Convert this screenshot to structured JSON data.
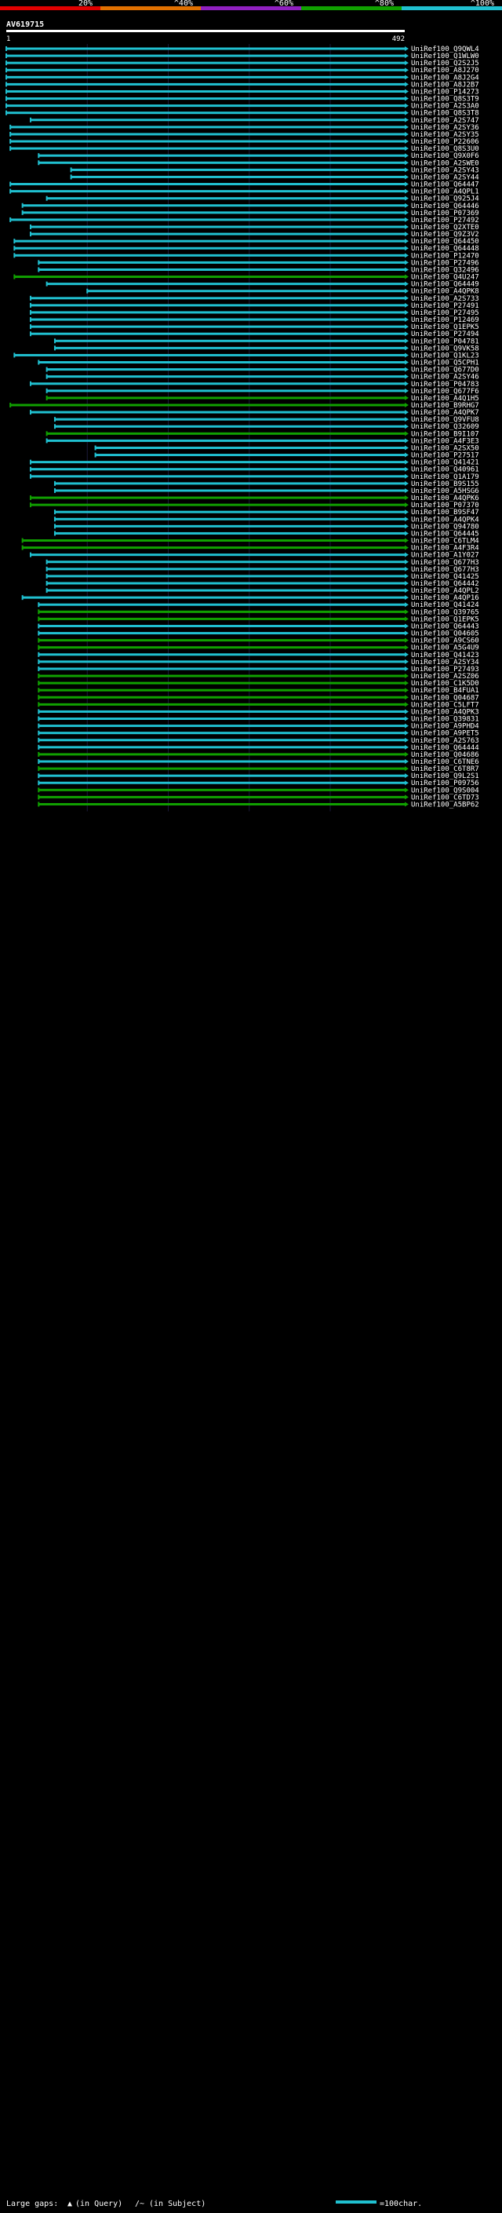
{
  "chart_data": {
    "type": "alignment-coverage",
    "title": "AV619715",
    "query_start_label": "1",
    "query_end_label": "492",
    "query_length": 492,
    "identity_scale": [
      {
        "label": "20%",
        "color": "#e00000"
      },
      {
        "label": "^40%",
        "color": "#e07000"
      },
      {
        "label": "^60%",
        "color": "#9020c0"
      },
      {
        "label": "^80%",
        "color": "#10a000"
      },
      {
        "label": "^100%",
        "color": "#20c0d0"
      }
    ],
    "colors": {
      "cyan": "#20c0d0",
      "green": "#10a000",
      "gap": "#ffffff",
      "background": "#000000"
    },
    "legend": {
      "gaps_prefix": "Large gaps:",
      "gaps_query": "(in Query)",
      "gaps_subject": "(in Subject)",
      "scale_label": "=100char."
    },
    "hits": [
      {
        "id": "UniRef100_Q9QWL4",
        "qs": 0,
        "qe": 492,
        "c": "c"
      },
      {
        "id": "UniRef100_Q1WLW0",
        "qs": 0,
        "qe": 492,
        "c": "c"
      },
      {
        "id": "UniRef100_Q2S2J5",
        "qs": 0,
        "qe": 492,
        "c": "c"
      },
      {
        "id": "UniRef100_A8J270",
        "qs": 0,
        "qe": 492,
        "c": "c"
      },
      {
        "id": "UniRef100_A8J2G4",
        "qs": 0,
        "qe": 492,
        "c": "c"
      },
      {
        "id": "UniRef100_A8J2B7",
        "qs": 0,
        "qe": 492,
        "c": "c"
      },
      {
        "id": "UniRef100_P14273",
        "qs": 0,
        "qe": 492,
        "c": "c"
      },
      {
        "id": "UniRef100_Q8S3T9",
        "qs": 0,
        "qe": 492,
        "c": "c"
      },
      {
        "id": "UniRef100_A2S3A0",
        "qs": 0,
        "qe": 492,
        "c": "c"
      },
      {
        "id": "UniRef100_Q8S3T8",
        "qs": 0,
        "qe": 492,
        "c": "c"
      },
      {
        "id": "UniRef100_A2S747",
        "qs": 30,
        "qe": 492,
        "c": "c"
      },
      {
        "id": "UniRef100_A2SY36",
        "qs": 5,
        "qe": 492,
        "c": "c"
      },
      {
        "id": "UniRef100_A2SY35",
        "qs": 5,
        "qe": 492,
        "c": "c"
      },
      {
        "id": "UniRef100_P22606",
        "qs": 5,
        "qe": 492,
        "c": "c"
      },
      {
        "id": "UniRef100_Q8S3U0",
        "qs": 5,
        "qe": 492,
        "c": "c"
      },
      {
        "id": "UniRef100_Q9X0F6",
        "qs": 40,
        "qe": 492,
        "c": "c"
      },
      {
        "id": "UniRef100_A2SWE0",
        "qs": 40,
        "qe": 492,
        "c": "c"
      },
      {
        "id": "UniRef100_A2SY43",
        "qs": 80,
        "qe": 492,
        "c": "c"
      },
      {
        "id": "UniRef100_A2SY44",
        "qs": 80,
        "qe": 492,
        "c": "c"
      },
      {
        "id": "UniRef100_Q64447",
        "qs": 5,
        "qe": 492,
        "c": "c"
      },
      {
        "id": "UniRef100_A4QPL1",
        "qs": 5,
        "qe": 492,
        "c": "c"
      },
      {
        "id": "UniRef100_Q925J4",
        "qs": 50,
        "qe": 492,
        "c": "c"
      },
      {
        "id": "UniRef100_Q64446",
        "qs": 20,
        "qe": 492,
        "c": "c"
      },
      {
        "id": "UniRef100_P07369",
        "qs": 20,
        "qe": 492,
        "c": "c"
      },
      {
        "id": "UniRef100_P27492",
        "qs": 5,
        "qe": 492,
        "c": "c"
      },
      {
        "id": "UniRef100_Q2XTE0",
        "qs": 30,
        "qe": 492,
        "c": "c"
      },
      {
        "id": "UniRef100_Q9Z3V2",
        "qs": 30,
        "qe": 492,
        "c": "c"
      },
      {
        "id": "UniRef100_Q64450",
        "qs": 10,
        "qe": 492,
        "c": "c"
      },
      {
        "id": "UniRef100_Q64448",
        "qs": 10,
        "qe": 492,
        "c": "c"
      },
      {
        "id": "UniRef100_P12470",
        "qs": 10,
        "qe": 492,
        "c": "c"
      },
      {
        "id": "UniRef100_P27496",
        "qs": 40,
        "qe": 492,
        "c": "c"
      },
      {
        "id": "UniRef100_Q32496",
        "qs": 40,
        "qe": 492,
        "c": "c"
      },
      {
        "id": "UniRef100_Q4U247",
        "qs": 10,
        "qe": 492,
        "c": "g"
      },
      {
        "id": "UniRef100_Q64449",
        "qs": 50,
        "qe": 492,
        "c": "c"
      },
      {
        "id": "UniRef100_A4QPK8",
        "qs": 100,
        "qe": 492,
        "c": "c"
      },
      {
        "id": "UniRef100_A2S733",
        "qs": 30,
        "qe": 492,
        "c": "c"
      },
      {
        "id": "UniRef100_P27491",
        "qs": 30,
        "qe": 492,
        "c": "c"
      },
      {
        "id": "UniRef100_P27495",
        "qs": 30,
        "qe": 492,
        "c": "c"
      },
      {
        "id": "UniRef100_P12469",
        "qs": 30,
        "qe": 492,
        "c": "c"
      },
      {
        "id": "UniRef100_Q1EPK5",
        "qs": 30,
        "qe": 492,
        "c": "c"
      },
      {
        "id": "UniRef100_P27494",
        "qs": 30,
        "qe": 492,
        "c": "c"
      },
      {
        "id": "UniRef100_P04781",
        "qs": 60,
        "qe": 492,
        "c": "c"
      },
      {
        "id": "UniRef100_Q9VK58",
        "qs": 60,
        "qe": 492,
        "c": "c"
      },
      {
        "id": "UniRef100_Q1KL23",
        "qs": 10,
        "qe": 492,
        "c": "c"
      },
      {
        "id": "UniRef100_Q5CPH1",
        "qs": 40,
        "qe": 492,
        "c": "c"
      },
      {
        "id": "UniRef100_Q677D0",
        "qs": 50,
        "qe": 492,
        "c": "c"
      },
      {
        "id": "UniRef100_A2SY46",
        "qs": 50,
        "qe": 492,
        "c": "c"
      },
      {
        "id": "UniRef100_P04783",
        "qs": 30,
        "qe": 492,
        "c": "c"
      },
      {
        "id": "UniRef100_Q677F6",
        "qs": 50,
        "qe": 492,
        "c": "c"
      },
      {
        "id": "UniRef100_A4Q1H5",
        "qs": 50,
        "qe": 492,
        "c": "g"
      },
      {
        "id": "UniRef100_B9RHG7",
        "qs": 5,
        "qe": 492,
        "c": "g"
      },
      {
        "id": "UniRef100_A4QPK7",
        "qs": 30,
        "qe": 492,
        "c": "c"
      },
      {
        "id": "UniRef100_Q9VFU8",
        "qs": 60,
        "qe": 492,
        "c": "c"
      },
      {
        "id": "UniRef100_Q32609",
        "qs": 60,
        "qe": 492,
        "c": "c"
      },
      {
        "id": "UniRef100_B9I107",
        "qs": 50,
        "qe": 492,
        "c": "g"
      },
      {
        "id": "UniRef100_A4F3E3",
        "qs": 50,
        "qe": 492,
        "c": "c"
      },
      {
        "id": "UniRef100_A2SX50",
        "qs": 110,
        "qe": 492,
        "c": "c"
      },
      {
        "id": "UniRef100_P27517",
        "qs": 110,
        "qe": 492,
        "c": "c"
      },
      {
        "id": "UniRef100_Q41421",
        "qs": 30,
        "qe": 492,
        "c": "c"
      },
      {
        "id": "UniRef100_Q40961",
        "qs": 30,
        "qe": 492,
        "c": "c"
      },
      {
        "id": "UniRef100_Q1A179",
        "qs": 30,
        "qe": 492,
        "c": "c"
      },
      {
        "id": "UniRef100_B9S155",
        "qs": 60,
        "qe": 492,
        "c": "c"
      },
      {
        "id": "UniRef100_A5HSG6",
        "qs": 60,
        "qe": 492,
        "c": "c"
      },
      {
        "id": "UniRef100_A4QPK6",
        "qs": 30,
        "qe": 492,
        "c": "g"
      },
      {
        "id": "UniRef100_P07370",
        "qs": 30,
        "qe": 492,
        "c": "g"
      },
      {
        "id": "UniRef100_B9SF47",
        "qs": 60,
        "qe": 492,
        "c": "c"
      },
      {
        "id": "UniRef100_A4QPK4",
        "qs": 60,
        "qe": 492,
        "c": "c"
      },
      {
        "id": "UniRef100_Q94780",
        "qs": 60,
        "qe": 492,
        "c": "c"
      },
      {
        "id": "UniRef100_Q64445",
        "qs": 60,
        "qe": 492,
        "c": "c"
      },
      {
        "id": "UniRef100_C6TLM4",
        "qs": 20,
        "qe": 492,
        "c": "g"
      },
      {
        "id": "UniRef100_A4F3R4",
        "qs": 20,
        "qe": 492,
        "c": "g"
      },
      {
        "id": "UniRef100_A1Y027",
        "qs": 30,
        "qe": 492,
        "c": "c"
      },
      {
        "id": "UniRef100_Q677H3",
        "qs": 50,
        "qe": 492,
        "c": "c"
      },
      {
        "id": "UniRef100_Q677H3",
        "qs": 50,
        "qe": 492,
        "c": "c"
      },
      {
        "id": "UniRef100_Q41425",
        "qs": 50,
        "qe": 492,
        "c": "c"
      },
      {
        "id": "UniRef100_Q64442",
        "qs": 50,
        "qe": 492,
        "c": "c"
      },
      {
        "id": "UniRef100_A4QPL2",
        "qs": 50,
        "qe": 492,
        "c": "c"
      },
      {
        "id": "UniRef100_A4QP16",
        "qs": 20,
        "qe": 492,
        "c": "c"
      },
      {
        "id": "UniRef100_Q41424",
        "qs": 40,
        "qe": 492,
        "c": "c"
      },
      {
        "id": "UniRef100_Q39765",
        "qs": 40,
        "qe": 492,
        "c": "g"
      },
      {
        "id": "UniRef100_Q1EPK5",
        "qs": 40,
        "qe": 492,
        "c": "g"
      },
      {
        "id": "UniRef100_Q64443",
        "qs": 40,
        "qe": 492,
        "c": "c"
      },
      {
        "id": "UniRef100_Q04605",
        "qs": 40,
        "qe": 492,
        "c": "c"
      },
      {
        "id": "UniRef100_A9CS60",
        "qs": 40,
        "qe": 492,
        "c": "g"
      },
      {
        "id": "UniRef100_A5G4U9",
        "qs": 40,
        "qe": 492,
        "c": "g"
      },
      {
        "id": "UniRef100_Q41423",
        "qs": 40,
        "qe": 492,
        "c": "c"
      },
      {
        "id": "UniRef100_A2SY34",
        "qs": 40,
        "qe": 492,
        "c": "c"
      },
      {
        "id": "UniRef100_P27493",
        "qs": 40,
        "qe": 492,
        "c": "c"
      },
      {
        "id": "UniRef100_A2SZ06",
        "qs": 40,
        "qe": 492,
        "c": "g"
      },
      {
        "id": "UniRef100_C1K5D0",
        "qs": 40,
        "qe": 492,
        "c": "g"
      },
      {
        "id": "UniRef100_B4FUA1",
        "qs": 40,
        "qe": 492,
        "c": "g"
      },
      {
        "id": "UniRef100_Q04687",
        "qs": 40,
        "qe": 492,
        "c": "g"
      },
      {
        "id": "UniRef100_C5LFT7",
        "qs": 40,
        "qe": 492,
        "c": "g"
      },
      {
        "id": "UniRef100_A4QPK3",
        "qs": 40,
        "qe": 492,
        "c": "c"
      },
      {
        "id": "UniRef100_Q39831",
        "qs": 40,
        "qe": 492,
        "c": "c"
      },
      {
        "id": "UniRef100_A9PHD4",
        "qs": 40,
        "qe": 492,
        "c": "c"
      },
      {
        "id": "UniRef100_A9PET5",
        "qs": 40,
        "qe": 492,
        "c": "c"
      },
      {
        "id": "UniRef100_A2S763",
        "qs": 40,
        "qe": 492,
        "c": "c"
      },
      {
        "id": "UniRef100_Q64444",
        "qs": 40,
        "qe": 492,
        "c": "c"
      },
      {
        "id": "UniRef100_Q04686",
        "qs": 40,
        "qe": 492,
        "c": "g"
      },
      {
        "id": "UniRef100_C6TNE6",
        "qs": 40,
        "qe": 492,
        "c": "c"
      },
      {
        "id": "UniRef100_C6T8R7",
        "qs": 40,
        "qe": 492,
        "c": "g"
      },
      {
        "id": "UniRef100_Q9L2S1",
        "qs": 40,
        "qe": 492,
        "c": "c"
      },
      {
        "id": "UniRef100_P09756",
        "qs": 40,
        "qe": 492,
        "c": "c"
      },
      {
        "id": "UniRef100_Q9S004",
        "qs": 40,
        "qe": 492,
        "c": "g"
      },
      {
        "id": "UniRef100_C6TD73",
        "qs": 40,
        "qe": 492,
        "c": "g"
      },
      {
        "id": "UniRef100_A5BP62",
        "qs": 40,
        "qe": 492,
        "c": "g"
      }
    ]
  }
}
